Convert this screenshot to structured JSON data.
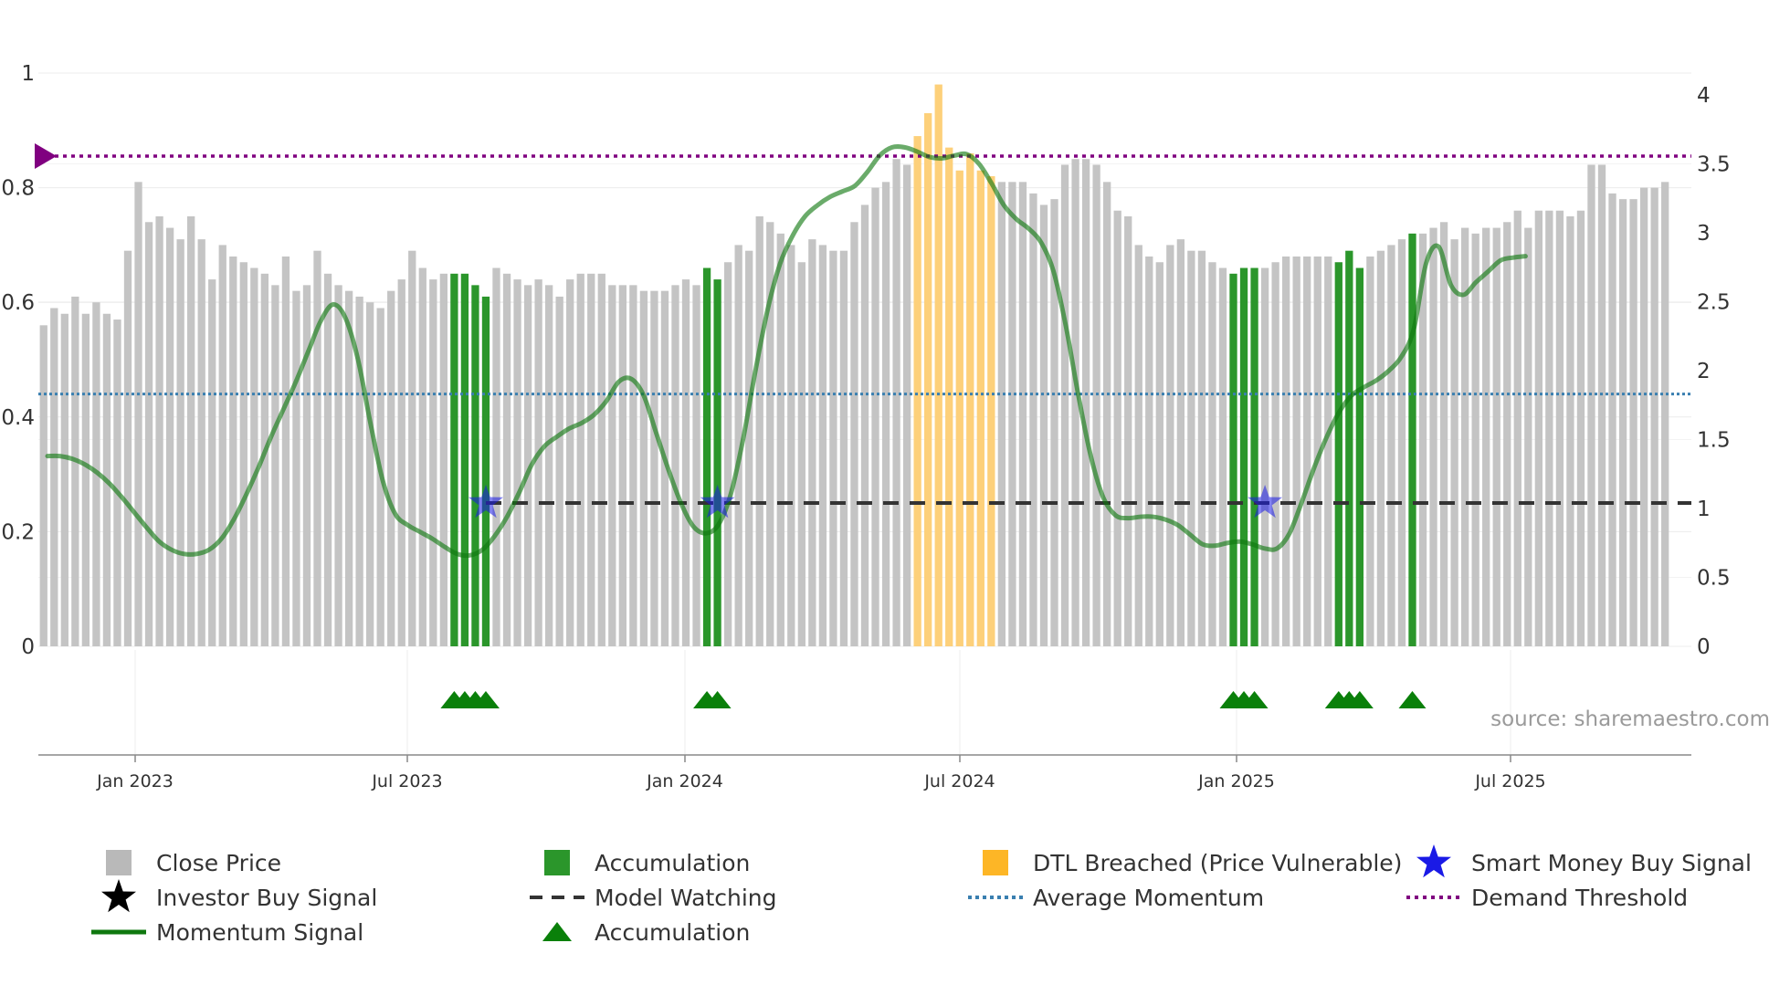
{
  "chart_data": {
    "type": "bar",
    "title": "",
    "left_axis": {
      "ticks": [
        "0",
        "0.2",
        "0.4",
        "0.6",
        "0.8",
        "1"
      ],
      "ylim": [
        0,
        1
      ]
    },
    "right_axis": {
      "ticks": [
        "0",
        "0.5",
        "1",
        "1.5",
        "2",
        "2.5",
        "3",
        "3.5",
        "4"
      ],
      "ylim": [
        0,
        4
      ]
    },
    "x_ticks": [
      "Jan 2023",
      "Jul 2023",
      "Jan 2024",
      "Jul 2024",
      "Jan 2025",
      "Jul 2025"
    ],
    "bar_count": 157,
    "close_price": [
      0.56,
      0.59,
      0.58,
      0.61,
      0.58,
      0.6,
      0.58,
      0.57,
      0.69,
      0.81,
      0.74,
      0.75,
      0.73,
      0.71,
      0.75,
      0.71,
      0.64,
      0.7,
      0.68,
      0.67,
      0.66,
      0.65,
      0.63,
      0.68,
      0.62,
      0.63,
      0.69,
      0.65,
      0.63,
      0.62,
      0.61,
      0.6,
      0.59,
      0.62,
      0.64,
      0.69,
      0.66,
      0.64,
      0.65,
      0.65,
      0.65,
      0.63,
      0.61,
      0.66,
      0.65,
      0.64,
      0.63,
      0.64,
      0.63,
      0.61,
      0.64,
      0.65,
      0.65,
      0.65,
      0.63,
      0.63,
      0.63,
      0.62,
      0.62,
      0.62,
      0.63,
      0.64,
      0.63,
      0.66,
      0.64,
      0.67,
      0.7,
      0.69,
      0.75,
      0.74,
      0.72,
      0.7,
      0.67,
      0.71,
      0.7,
      0.69,
      0.69,
      0.74,
      0.77,
      0.8,
      0.81,
      0.85,
      0.84,
      0.89,
      0.93,
      0.98,
      0.87,
      0.83,
      0.86,
      0.83,
      0.82,
      0.81,
      0.81,
      0.81,
      0.79,
      0.77,
      0.78,
      0.84,
      0.85,
      0.85,
      0.84,
      0.81,
      0.76,
      0.75,
      0.7,
      0.68,
      0.67,
      0.7,
      0.71,
      0.69,
      0.69,
      0.67,
      0.66,
      0.65,
      0.66,
      0.66,
      0.66,
      0.67,
      0.68,
      0.68,
      0.68,
      0.68,
      0.68,
      0.67,
      0.69,
      0.66,
      0.68,
      0.69,
      0.7,
      0.71,
      0.72,
      0.72,
      0.73,
      0.74,
      0.71,
      0.73,
      0.72,
      0.73,
      0.73,
      0.74,
      0.76,
      0.73,
      0.76,
      0.76,
      0.76,
      0.75,
      0.76,
      0.84,
      0.84,
      0.79,
      0.78,
      0.78,
      0.8,
      0.8,
      0.81
    ],
    "accumulation_bars": [
      39,
      40,
      41,
      42,
      63,
      64,
      113,
      114,
      115,
      123,
      124,
      125,
      130
    ],
    "dtl_breached_bars": [
      83,
      84,
      85,
      86,
      87,
      88,
      89,
      90
    ],
    "momentum_signal": [
      [
        0,
        1.38
      ],
      [
        1,
        1.38
      ],
      [
        2,
        1.36
      ],
      [
        3,
        1.32
      ],
      [
        4,
        1.26
      ],
      [
        5,
        1.18
      ],
      [
        6,
        1.08
      ],
      [
        7,
        0.97
      ],
      [
        8,
        0.86
      ],
      [
        9,
        0.76
      ],
      [
        10,
        0.7
      ],
      [
        11,
        0.67
      ],
      [
        12,
        0.67
      ],
      [
        13,
        0.7
      ],
      [
        14,
        0.78
      ],
      [
        15,
        0.92
      ],
      [
        16,
        1.1
      ],
      [
        17,
        1.3
      ],
      [
        18,
        1.52
      ],
      [
        19,
        1.72
      ],
      [
        20,
        1.92
      ],
      [
        21,
        2.14
      ],
      [
        22,
        2.36
      ],
      [
        23,
        2.48
      ],
      [
        24,
        2.38
      ],
      [
        25,
        2.08
      ],
      [
        26,
        1.62
      ],
      [
        27,
        1.2
      ],
      [
        28,
        0.96
      ],
      [
        29,
        0.88
      ],
      [
        30,
        0.83
      ],
      [
        31,
        0.78
      ],
      [
        32,
        0.72
      ],
      [
        33,
        0.67
      ],
      [
        34,
        0.66
      ],
      [
        35,
        0.7
      ],
      [
        36,
        0.8
      ],
      [
        37,
        0.94
      ],
      [
        38,
        1.12
      ],
      [
        39,
        1.32
      ],
      [
        40,
        1.45
      ],
      [
        41,
        1.52
      ],
      [
        42,
        1.58
      ],
      [
        43,
        1.62
      ],
      [
        44,
        1.68
      ],
      [
        45,
        1.78
      ],
      [
        46,
        1.92
      ],
      [
        47,
        1.94
      ],
      [
        48,
        1.82
      ],
      [
        49,
        1.55
      ],
      [
        50,
        1.28
      ],
      [
        51,
        1.04
      ],
      [
        52,
        0.87
      ],
      [
        53,
        0.82
      ],
      [
        54,
        0.88
      ],
      [
        55,
        1.1
      ],
      [
        56,
        1.5
      ],
      [
        57,
        2.0
      ],
      [
        58,
        2.45
      ],
      [
        59,
        2.78
      ],
      [
        60,
        2.98
      ],
      [
        61,
        3.12
      ],
      [
        62,
        3.2
      ],
      [
        63,
        3.26
      ],
      [
        64,
        3.3
      ],
      [
        65,
        3.34
      ],
      [
        66,
        3.44
      ],
      [
        67,
        3.56
      ],
      [
        68,
        3.62
      ],
      [
        69,
        3.62
      ],
      [
        70,
        3.59
      ],
      [
        71,
        3.55
      ],
      [
        72,
        3.54
      ],
      [
        73,
        3.56
      ],
      [
        74,
        3.57
      ],
      [
        75,
        3.5
      ],
      [
        76,
        3.36
      ],
      [
        77,
        3.2
      ],
      [
        78,
        3.1
      ],
      [
        79,
        3.03
      ],
      [
        80,
        2.93
      ],
      [
        81,
        2.72
      ],
      [
        82,
        2.32
      ],
      [
        83,
        1.82
      ],
      [
        84,
        1.38
      ],
      [
        85,
        1.08
      ],
      [
        86,
        0.95
      ],
      [
        87,
        0.93
      ],
      [
        88,
        0.94
      ],
      [
        89,
        0.94
      ],
      [
        90,
        0.92
      ],
      [
        91,
        0.88
      ],
      [
        92,
        0.81
      ],
      [
        93,
        0.74
      ],
      [
        94,
        0.73
      ],
      [
        95,
        0.75
      ],
      [
        96,
        0.76
      ],
      [
        97,
        0.74
      ],
      [
        98,
        0.71
      ],
      [
        99,
        0.71
      ],
      [
        100,
        0.82
      ],
      [
        101,
        1.05
      ],
      [
        102,
        1.3
      ],
      [
        103,
        1.52
      ],
      [
        104,
        1.7
      ],
      [
        105,
        1.82
      ],
      [
        106,
        1.88
      ],
      [
        107,
        1.93
      ],
      [
        108,
        2.0
      ],
      [
        109,
        2.1
      ],
      [
        110,
        2.3
      ],
      [
        111,
        2.78
      ],
      [
        112,
        2.9
      ],
      [
        113,
        2.62
      ],
      [
        114,
        2.55
      ],
      [
        115,
        2.64
      ],
      [
        116,
        2.72
      ],
      [
        117,
        2.8
      ],
      [
        118,
        2.82
      ],
      [
        119,
        2.83
      ]
    ],
    "model_watching_level": 0.25,
    "average_momentum_level": 0.44,
    "demand_threshold_level": 0.855,
    "smart_money_buy_signals": [
      [
        42,
        0.25
      ],
      [
        64,
        0.25
      ],
      [
        116,
        0.25
      ]
    ],
    "accumulation_markers": [
      39,
      40,
      41,
      42,
      63,
      64,
      113,
      114,
      115,
      123,
      124,
      125,
      130
    ],
    "colors": {
      "close_price": "#c4c4c4",
      "accumulation": "#2b962b",
      "dtl_breached": "#fdd07a",
      "momentum_signal": "#0f780f",
      "model_watching": "#333333",
      "average_momentum": "#3a7fb0",
      "demand_threshold": "#800080",
      "smart_money": "#1a1ae6",
      "accumulation_marker": "#0a800a"
    }
  },
  "source_label": "source: sharemaestro.com",
  "legend": [
    {
      "key": "close",
      "label": "Close Price"
    },
    {
      "key": "accum_bar",
      "label": "Accumulation"
    },
    {
      "key": "dtl",
      "label": "DTL Breached (Price Vulnerable)"
    },
    {
      "key": "smart",
      "label": "Smart Money Buy Signal"
    },
    {
      "key": "investor",
      "label": "Investor Buy Signal"
    },
    {
      "key": "watch",
      "label": "Model Watching"
    },
    {
      "key": "avgmom",
      "label": "Average Momentum"
    },
    {
      "key": "demand",
      "label": "Demand Threshold"
    },
    {
      "key": "momentum",
      "label": "Momentum Signal"
    },
    {
      "key": "accum_marker",
      "label": "Accumulation"
    }
  ]
}
